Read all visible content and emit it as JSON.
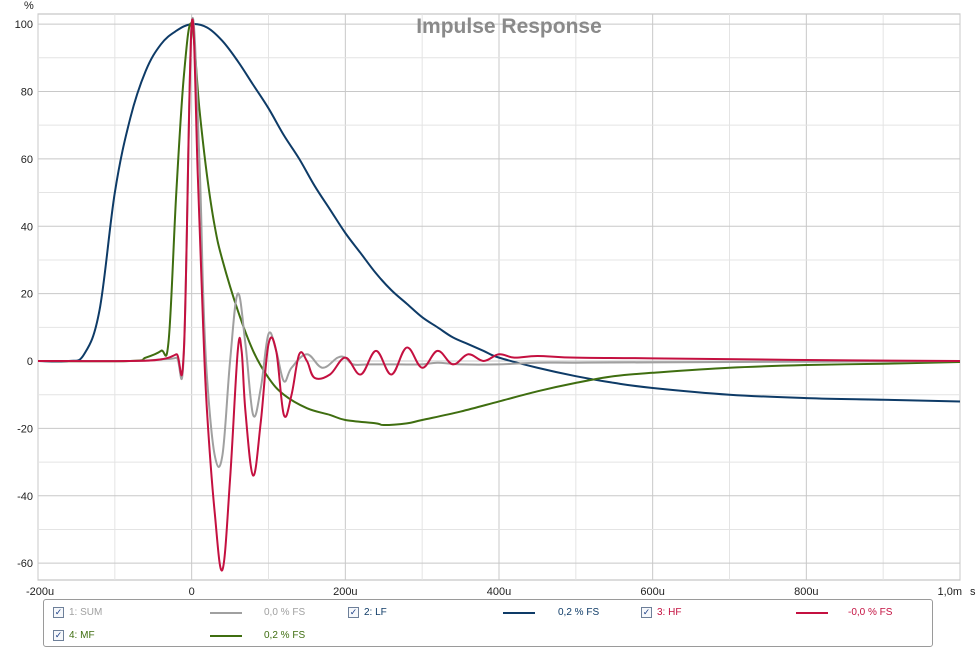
{
  "chart_data": {
    "type": "line",
    "title": "Impulse Response",
    "y_unit_label": "%",
    "x_unit_label": "s",
    "xlim": [
      -0.0002,
      0.001
    ],
    "ylim": [
      -65,
      103
    ],
    "grid": true,
    "x_ticks": [
      {
        "value": -0.0002,
        "label": "-200u"
      },
      {
        "value": 0,
        "label": "0"
      },
      {
        "value": 0.0002,
        "label": "200u"
      },
      {
        "value": 0.0004,
        "label": "400u"
      },
      {
        "value": 0.0006,
        "label": "600u"
      },
      {
        "value": 0.0008,
        "label": "800u"
      },
      {
        "value": 0.001,
        "label": "1,0m"
      }
    ],
    "y_ticks": [
      {
        "value": 100,
        "label": "100"
      },
      {
        "value": 80,
        "label": "80"
      },
      {
        "value": 60,
        "label": "60"
      },
      {
        "value": 40,
        "label": "40"
      },
      {
        "value": 20,
        "label": "20"
      },
      {
        "value": 0,
        "label": "0"
      },
      {
        "value": -20,
        "label": "-20"
      },
      {
        "value": -40,
        "label": "-40"
      },
      {
        "value": -60,
        "label": "-60"
      }
    ],
    "series": [
      {
        "name": "1: SUM",
        "value_label": "0,0 % FS",
        "color": "#a0a0a0",
        "points": [
          [
            -0.0002,
            0
          ],
          [
            -8e-05,
            0
          ],
          [
            -4e-05,
            0.5
          ],
          [
            -2e-05,
            1
          ],
          [
            -1e-05,
            3
          ],
          [
            0,
            100
          ],
          [
            1e-05,
            60
          ],
          [
            1.5e-05,
            20
          ],
          [
            2e-05,
            -5
          ],
          [
            3e-05,
            -28
          ],
          [
            4e-05,
            -28
          ],
          [
            5e-05,
            0
          ],
          [
            6e-05,
            20
          ],
          [
            7e-05,
            5
          ],
          [
            8e-05,
            -16
          ],
          [
            9e-05,
            -8
          ],
          [
            0.0001,
            8
          ],
          [
            0.00011,
            3
          ],
          [
            0.00012,
            -6
          ],
          [
            0.00013,
            -2
          ],
          [
            0.00015,
            2
          ],
          [
            0.00017,
            -2
          ],
          [
            0.00019,
            1
          ],
          [
            0.0002,
            1
          ],
          [
            0.00021,
            -1
          ],
          [
            0.00023,
            -1
          ],
          [
            0.00025,
            -1
          ],
          [
            0.00027,
            -1
          ],
          [
            0.0003,
            -1
          ],
          [
            0.00032,
            -0.5
          ],
          [
            0.00035,
            -1
          ],
          [
            0.0004,
            -1
          ],
          [
            0.00045,
            -0.5
          ],
          [
            0.0005,
            -0.5
          ],
          [
            0.0006,
            -0.4
          ],
          [
            0.0008,
            -0.2
          ],
          [
            0.001,
            0
          ]
        ]
      },
      {
        "name": "2: LF",
        "value_label": "0,2 % FS",
        "color": "#0e3b67",
        "points": [
          [
            -0.0002,
            0
          ],
          [
            -0.00016,
            0
          ],
          [
            -0.00014,
            2
          ],
          [
            -0.00012,
            15
          ],
          [
            -0.0001,
            50
          ],
          [
            -8e-05,
            72
          ],
          [
            -6e-05,
            86
          ],
          [
            -4e-05,
            94
          ],
          [
            -2e-05,
            98
          ],
          [
            0,
            100
          ],
          [
            2e-05,
            99
          ],
          [
            4e-05,
            95
          ],
          [
            6e-05,
            89
          ],
          [
            8e-05,
            82
          ],
          [
            0.0001,
            75
          ],
          [
            0.00012,
            67
          ],
          [
            0.00014,
            60
          ],
          [
            0.00016,
            52
          ],
          [
            0.00018,
            45
          ],
          [
            0.0002,
            38
          ],
          [
            0.00022,
            32
          ],
          [
            0.00024,
            26
          ],
          [
            0.00026,
            21
          ],
          [
            0.00028,
            17
          ],
          [
            0.0003,
            13
          ],
          [
            0.00032,
            10
          ],
          [
            0.00034,
            7
          ],
          [
            0.00036,
            5
          ],
          [
            0.00038,
            3
          ],
          [
            0.0004,
            1
          ],
          [
            0.00045,
            -2
          ],
          [
            0.0005,
            -4.5
          ],
          [
            0.00055,
            -6.5
          ],
          [
            0.0006,
            -8
          ],
          [
            0.0007,
            -10
          ],
          [
            0.0008,
            -11
          ],
          [
            0.0009,
            -11.5
          ],
          [
            0.001,
            -12
          ]
        ]
      },
      {
        "name": "3: HF",
        "value_label": "-0,0 % FS",
        "color": "#c41040",
        "points": [
          [
            -0.0002,
            0
          ],
          [
            -8e-05,
            0
          ],
          [
            -4e-05,
            0.5
          ],
          [
            -2e-05,
            2
          ],
          [
            -1e-05,
            4
          ],
          [
            0,
            100
          ],
          [
            8e-06,
            55
          ],
          [
            1.5e-05,
            10
          ],
          [
            2e-05,
            -15
          ],
          [
            3e-05,
            -45
          ],
          [
            4e-05,
            -62
          ],
          [
            5e-05,
            -35
          ],
          [
            6e-05,
            3
          ],
          [
            6.5e-05,
            3
          ],
          [
            7e-05,
            -15
          ],
          [
            8e-05,
            -34
          ],
          [
            9e-05,
            -18
          ],
          [
            0.0001,
            5
          ],
          [
            0.00011,
            3
          ],
          [
            0.00012,
            -16
          ],
          [
            0.00013,
            -10
          ],
          [
            0.00014,
            2
          ],
          [
            0.00015,
            0
          ],
          [
            0.00016,
            -5
          ],
          [
            0.00018,
            -4
          ],
          [
            0.0002,
            1
          ],
          [
            0.00022,
            -4
          ],
          [
            0.00024,
            3
          ],
          [
            0.00026,
            -4
          ],
          [
            0.00028,
            4
          ],
          [
            0.0003,
            -2
          ],
          [
            0.00032,
            3
          ],
          [
            0.00034,
            -1
          ],
          [
            0.00036,
            2
          ],
          [
            0.00038,
            0
          ],
          [
            0.0004,
            2
          ],
          [
            0.00042,
            1
          ],
          [
            0.00045,
            1.5
          ],
          [
            0.0005,
            1
          ],
          [
            0.0006,
            0.8
          ],
          [
            0.0008,
            0.3
          ],
          [
            0.001,
            0
          ]
        ]
      },
      {
        "name": "4: MF",
        "value_label": "0,2 % FS",
        "color": "#3f6e10",
        "points": [
          [
            -0.0002,
            0
          ],
          [
            -8e-05,
            0
          ],
          [
            -6e-05,
            1
          ],
          [
            -4e-05,
            3
          ],
          [
            -3e-05,
            6
          ],
          [
            -2e-05,
            50
          ],
          [
            -1e-05,
            85
          ],
          [
            0,
            100
          ],
          [
            1e-05,
            75
          ],
          [
            2e-05,
            55
          ],
          [
            3e-05,
            40
          ],
          [
            4e-05,
            30
          ],
          [
            6e-05,
            15
          ],
          [
            8e-05,
            3
          ],
          [
            0.0001,
            -5
          ],
          [
            0.00012,
            -10
          ],
          [
            0.00015,
            -14
          ],
          [
            0.00018,
            -16
          ],
          [
            0.0002,
            -17.5
          ],
          [
            0.00024,
            -18.5
          ],
          [
            0.00025,
            -19
          ],
          [
            0.00028,
            -18.5
          ],
          [
            0.0003,
            -17.5
          ],
          [
            0.00035,
            -15
          ],
          [
            0.0004,
            -12
          ],
          [
            0.00045,
            -9
          ],
          [
            0.0005,
            -6.5
          ],
          [
            0.00055,
            -4.5
          ],
          [
            0.0006,
            -3.5
          ],
          [
            0.0007,
            -2
          ],
          [
            0.0008,
            -1.2
          ],
          [
            0.0009,
            -0.8
          ],
          [
            0.001,
            -0.3
          ]
        ]
      }
    ]
  },
  "legend": {
    "entries": [
      {
        "label": "1: SUM",
        "value": "0,0 % FS",
        "checked": true,
        "color": "#a0a0a0"
      },
      {
        "label": "2: LF",
        "value": "0,2 % FS",
        "checked": true,
        "color": "#0e3b67"
      },
      {
        "label": "3: HF",
        "value": "-0,0 % FS",
        "checked": true,
        "color": "#c41040"
      },
      {
        "label": "4: MF",
        "value": "0,2 % FS",
        "checked": true,
        "color": "#3f6e10"
      }
    ]
  }
}
